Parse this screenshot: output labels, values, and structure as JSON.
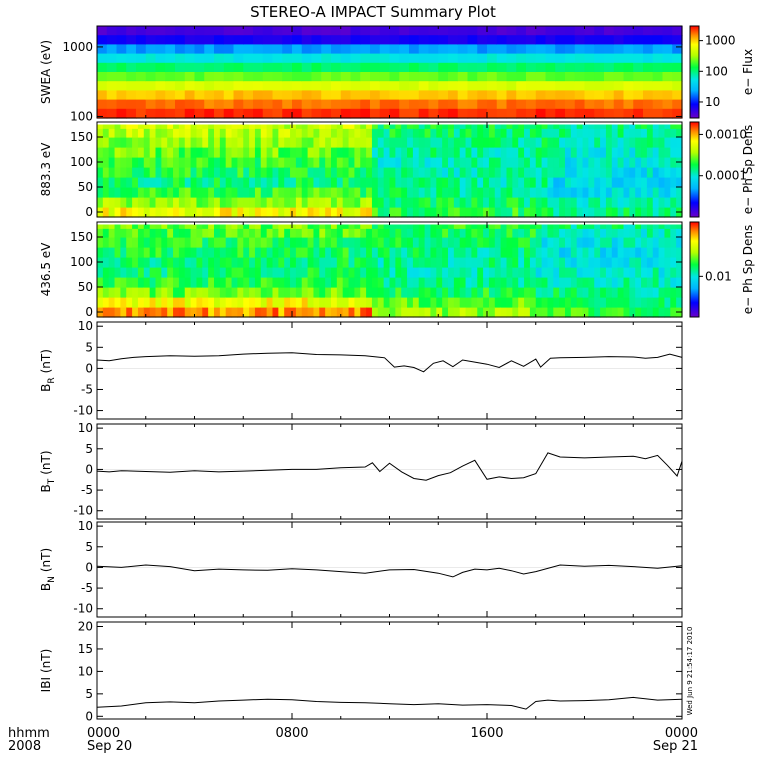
{
  "title": "STEREO-A IMPACT Summary Plot",
  "stamp": "Wed Jun  9 21:54:17 2010",
  "time_axis": {
    "row1": "hhmm",
    "row2": "2008",
    "ticks": [
      {
        "hours": 0,
        "label": "0000",
        "date": "Sep 20"
      },
      {
        "hours": 8,
        "label": "0800",
        "date": ""
      },
      {
        "hours": 16,
        "label": "1600",
        "date": ""
      },
      {
        "hours": 24,
        "label": "0000",
        "date": "Sep 21"
      }
    ],
    "range_hours": [
      0,
      24
    ]
  },
  "chart_data": [
    {
      "type": "heatmap",
      "ylabel": "SWEA (eV)",
      "yscale": "log",
      "ylim": [
        95,
        2000
      ],
      "yticks": [
        {
          "v": 1000,
          "label": "1000"
        },
        {
          "v": 100,
          "label": "100"
        }
      ],
      "colorbar": {
        "label": "e− Flux",
        "scale": "log",
        "range": [
          3,
          3000
        ],
        "ticks": [
          {
            "v": 1000,
            "label": "1000"
          },
          {
            "v": 100,
            "label": "100"
          },
          {
            "v": 10,
            "label": "10"
          }
        ]
      },
      "rows_energy_eV": [
        1800,
        1400,
        1000,
        700,
        500,
        350,
        250,
        180,
        130,
        100
      ],
      "rows_color_level": [
        0.05,
        0.12,
        0.28,
        0.42,
        0.52,
        0.62,
        0.74,
        0.85,
        0.92,
        0.97
      ]
    },
    {
      "type": "heatmap",
      "ylabel": "883.3 eV",
      "ylim": [
        -10,
        180
      ],
      "yticks": [
        {
          "v": 150,
          "label": "150"
        },
        {
          "v": 100,
          "label": "100"
        },
        {
          "v": 50,
          "label": "50"
        },
        {
          "v": 0,
          "label": "0"
        }
      ],
      "colorbar": {
        "label": "e− Ph Sp Dens",
        "scale": "log",
        "range": [
          1e-05,
          0.002
        ],
        "ticks": [
          {
            "v": 0.001,
            "label": "0.0010"
          },
          {
            "v": 0.0001,
            "label": "0.0001"
          }
        ]
      },
      "pitch_angles": [
        0,
        20,
        40,
        60,
        80,
        100,
        120,
        140,
        160,
        175
      ],
      "segments": [
        {
          "start_h": 0,
          "end_h": 11.3,
          "levels": [
            0.78,
            0.66,
            0.58,
            0.52,
            0.55,
            0.58,
            0.62,
            0.66,
            0.7,
            0.72
          ]
        },
        {
          "start_h": 11.3,
          "end_h": 18.5,
          "levels": [
            0.56,
            0.52,
            0.5,
            0.48,
            0.46,
            0.46,
            0.48,
            0.5,
            0.52,
            0.54
          ]
        },
        {
          "start_h": 18.5,
          "end_h": 24,
          "levels": [
            0.5,
            0.46,
            0.4,
            0.38,
            0.4,
            0.42,
            0.44,
            0.46,
            0.48,
            0.5
          ]
        }
      ]
    },
    {
      "type": "heatmap",
      "ylabel": "436.5 eV",
      "ylim": [
        -10,
        180
      ],
      "yticks": [
        {
          "v": 150,
          "label": "150"
        },
        {
          "v": 100,
          "label": "100"
        },
        {
          "v": 50,
          "label": "50"
        },
        {
          "v": 0,
          "label": "0"
        }
      ],
      "colorbar": {
        "label": "e− Ph Sp Dens",
        "scale": "log",
        "range": [
          0.003,
          0.05
        ],
        "ticks": [
          {
            "v": 0.01,
            "label": "0.01"
          }
        ]
      },
      "pitch_angles": [
        0,
        20,
        40,
        60,
        80,
        100,
        120,
        140,
        160,
        175
      ],
      "segments": [
        {
          "start_h": 0,
          "end_h": 11.3,
          "levels": [
            0.9,
            0.78,
            0.62,
            0.56,
            0.52,
            0.52,
            0.54,
            0.56,
            0.6,
            0.62
          ]
        },
        {
          "start_h": 11.3,
          "end_h": 18.0,
          "levels": [
            0.66,
            0.6,
            0.54,
            0.5,
            0.48,
            0.48,
            0.5,
            0.52,
            0.54,
            0.56
          ]
        },
        {
          "start_h": 18.0,
          "end_h": 24,
          "levels": [
            0.58,
            0.52,
            0.5,
            0.46,
            0.44,
            0.42,
            0.4,
            0.42,
            0.46,
            0.5
          ]
        }
      ]
    },
    {
      "type": "line",
      "ylabel": "B",
      "ylabel_sub": "R",
      "ylabel_unit": "(nT)",
      "ylim": [
        -12,
        11
      ],
      "yticks": [
        10,
        5,
        0,
        -5,
        -10
      ],
      "x": [
        0,
        0.5,
        1,
        1.5,
        2,
        3,
        4,
        5,
        6,
        7,
        8,
        8.5,
        9,
        10,
        11,
        11.8,
        12.2,
        12.6,
        13,
        13.4,
        13.8,
        14.2,
        14.6,
        15,
        15.5,
        16,
        16.5,
        17,
        17.5,
        18,
        18.2,
        18.6,
        19,
        20,
        21,
        22,
        22.5,
        23,
        23.5,
        24
      ],
      "y": [
        2.0,
        1.8,
        2.3,
        2.6,
        2.8,
        3.0,
        2.9,
        3.0,
        3.4,
        3.6,
        3.7,
        3.5,
        3.3,
        3.2,
        3.0,
        2.5,
        0.3,
        0.6,
        0.2,
        -0.8,
        1.2,
        1.8,
        0.4,
        2.0,
        1.5,
        1.0,
        0.2,
        1.8,
        0.5,
        2.2,
        0.3,
        2.4,
        2.5,
        2.6,
        2.8,
        2.7,
        2.4,
        2.6,
        3.4,
        2.6
      ]
    },
    {
      "type": "line",
      "ylabel": "B",
      "ylabel_sub": "T",
      "ylabel_unit": "(nT)",
      "ylim": [
        -12,
        11
      ],
      "yticks": [
        10,
        5,
        0,
        -5,
        -10
      ],
      "x": [
        0,
        0.5,
        1,
        2,
        3,
        4,
        5,
        6,
        7,
        8,
        9,
        10,
        11,
        11.3,
        11.6,
        12,
        12.5,
        13,
        13.5,
        14,
        14.5,
        15,
        15.5,
        16,
        16.5,
        17,
        17.5,
        18,
        18.5,
        19,
        20,
        21,
        22,
        22.5,
        23,
        23.4,
        23.8,
        24
      ],
      "y": [
        -0.4,
        -0.6,
        -0.3,
        -0.5,
        -0.7,
        -0.3,
        -0.6,
        -0.4,
        -0.2,
        0.0,
        0.0,
        0.4,
        0.6,
        1.6,
        -0.5,
        1.5,
        -0.6,
        -2.2,
        -2.6,
        -1.5,
        -0.8,
        0.8,
        2.2,
        -2.4,
        -1.8,
        -2.2,
        -2.0,
        -1.0,
        4.0,
        3.0,
        2.8,
        3.0,
        3.2,
        2.6,
        3.4,
        1.0,
        -1.6,
        2.0
      ]
    },
    {
      "type": "line",
      "ylabel": "B",
      "ylabel_sub": "N",
      "ylabel_unit": "(nT)",
      "ylim": [
        -12,
        11
      ],
      "yticks": [
        10,
        5,
        0,
        -5,
        -10
      ],
      "x": [
        0,
        1,
        2,
        3,
        4,
        5,
        6,
        7,
        8,
        9,
        10,
        11,
        12,
        13,
        14,
        14.6,
        15,
        15.5,
        16,
        16.5,
        17,
        17.5,
        18,
        19,
        20,
        21,
        22,
        23,
        24
      ],
      "y": [
        0.3,
        0.0,
        0.6,
        0.2,
        -0.8,
        -0.4,
        -0.6,
        -0.7,
        -0.3,
        -0.6,
        -1.0,
        -1.4,
        -0.6,
        -0.5,
        -1.4,
        -2.3,
        -1.2,
        -0.4,
        -0.6,
        -0.2,
        -0.8,
        -1.6,
        -1.0,
        0.6,
        0.3,
        0.5,
        0.2,
        -0.2,
        0.4
      ]
    },
    {
      "type": "line",
      "ylabel": "IBI",
      "ylabel_unit": "(nT)",
      "ylim": [
        -0.6,
        21
      ],
      "yticks": [
        20,
        15,
        10,
        5,
        0
      ],
      "x": [
        0,
        1,
        2,
        3,
        4,
        5,
        6,
        7,
        8,
        9,
        10,
        11,
        12,
        13,
        14,
        15,
        16,
        17,
        17.6,
        18,
        18.5,
        19,
        20,
        21,
        22,
        23,
        24
      ],
      "y": [
        2.0,
        2.3,
        3.0,
        3.2,
        3.0,
        3.4,
        3.6,
        3.8,
        3.7,
        3.3,
        3.1,
        3.0,
        2.8,
        2.6,
        2.8,
        2.5,
        2.6,
        2.4,
        1.6,
        3.3,
        3.6,
        3.4,
        3.5,
        3.7,
        4.2,
        3.6,
        3.8
      ]
    }
  ]
}
